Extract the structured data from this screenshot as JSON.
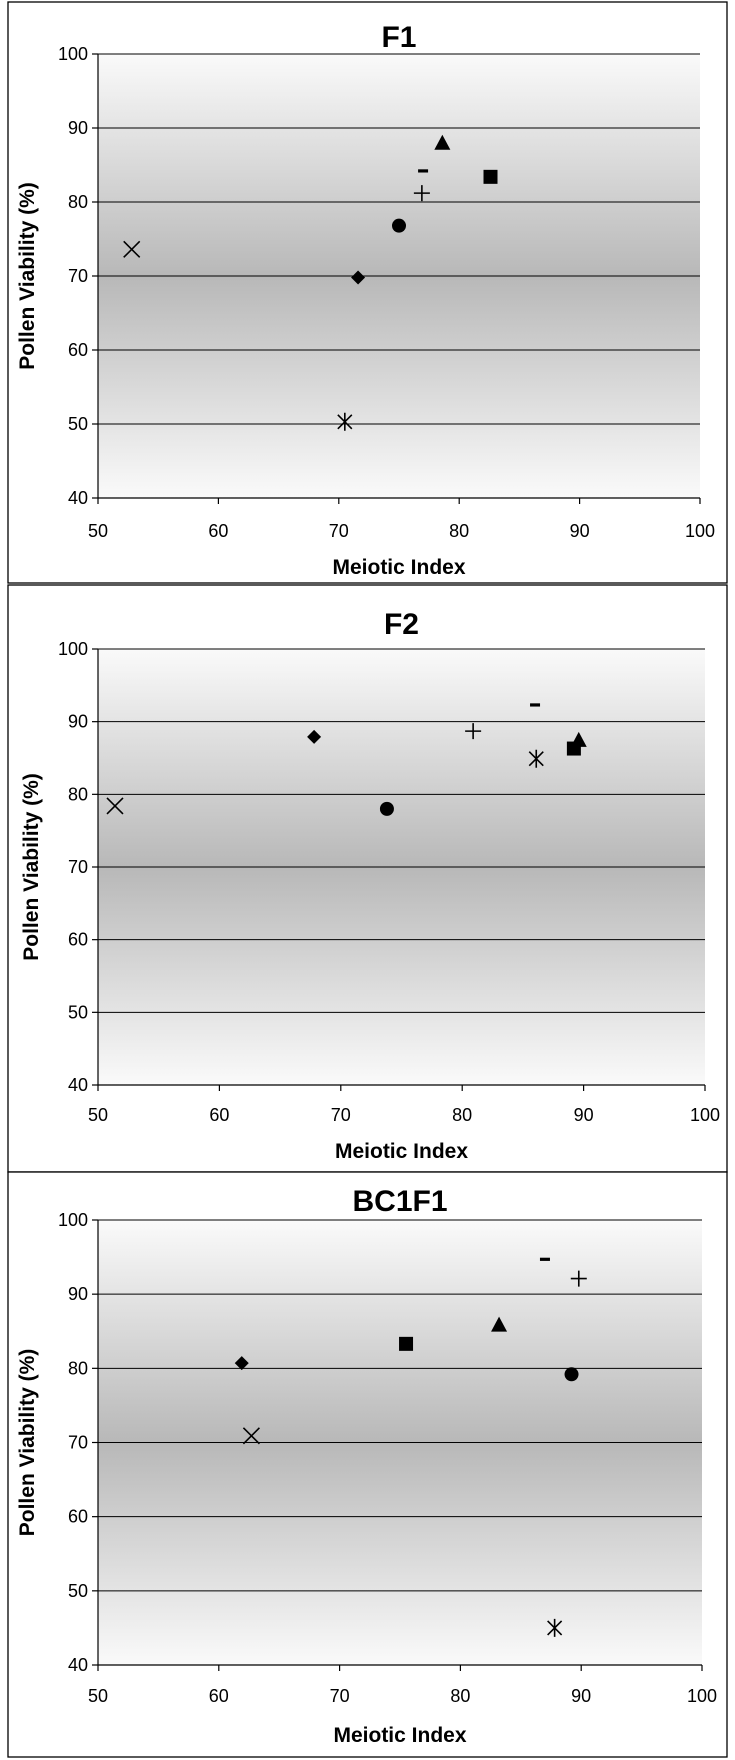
{
  "chart_data": [
    {
      "type": "scatter",
      "title": "F1",
      "xlabel": "Meiotic Index",
      "ylabel": "Pollen Viability (%)",
      "xlim": [
        50,
        100
      ],
      "ylim": [
        40,
        100
      ],
      "xticks": [
        "50",
        "60",
        "70",
        "80",
        "90",
        "100"
      ],
      "yticks": [
        "40",
        "50",
        "60",
        "70",
        "80",
        "90",
        "100"
      ],
      "grid": true,
      "legend": "none",
      "points": [
        {
          "marker": "diamond",
          "x": 71.6,
          "y": 69.8
        },
        {
          "marker": "square",
          "x": 82.6,
          "y": 83.4
        },
        {
          "marker": "triangle",
          "x": 78.6,
          "y": 88.0
        },
        {
          "marker": "x",
          "x": 52.8,
          "y": 73.6
        },
        {
          "marker": "asterisk",
          "x": 70.5,
          "y": 50.3
        },
        {
          "marker": "circle",
          "x": 75.0,
          "y": 76.8
        },
        {
          "marker": "plus",
          "x": 76.9,
          "y": 81.2
        },
        {
          "marker": "dash",
          "x": 77.0,
          "y": 84.2
        }
      ]
    },
    {
      "type": "scatter",
      "title": "F2",
      "xlabel": "Meiotic Index",
      "ylabel": "Pollen Viability (%)",
      "xlim": [
        50,
        100
      ],
      "ylim": [
        40,
        100
      ],
      "xticks": [
        "50",
        "60",
        "70",
        "80",
        "90",
        "100"
      ],
      "yticks": [
        "40",
        "50",
        "60",
        "70",
        "80",
        "90",
        "100"
      ],
      "grid": true,
      "legend": "none",
      "points": [
        {
          "marker": "diamond",
          "x": 67.8,
          "y": 87.9
        },
        {
          "marker": "square",
          "x": 89.2,
          "y": 86.3
        },
        {
          "marker": "triangle",
          "x": 89.6,
          "y": 87.5
        },
        {
          "marker": "x",
          "x": 51.4,
          "y": 78.4
        },
        {
          "marker": "asterisk",
          "x": 86.1,
          "y": 84.9
        },
        {
          "marker": "circle",
          "x": 73.8,
          "y": 78.0
        },
        {
          "marker": "plus",
          "x": 80.9,
          "y": 88.7
        },
        {
          "marker": "dash",
          "x": 86.0,
          "y": 92.3
        }
      ]
    },
    {
      "type": "scatter",
      "title": "BC1F1",
      "xlabel": "Meiotic Index",
      "ylabel": "Pollen Viability (%)",
      "xlim": [
        50,
        100
      ],
      "ylim": [
        40,
        100
      ],
      "xticks": [
        "50",
        "60",
        "70",
        "80",
        "90",
        "100"
      ],
      "yticks": [
        "40",
        "50",
        "60",
        "70",
        "80",
        "90",
        "100"
      ],
      "grid": true,
      "legend": "none",
      "points": [
        {
          "marker": "diamond",
          "x": 61.9,
          "y": 80.7
        },
        {
          "marker": "square",
          "x": 75.5,
          "y": 83.3
        },
        {
          "marker": "triangle",
          "x": 83.2,
          "y": 85.9
        },
        {
          "marker": "x",
          "x": 62.7,
          "y": 70.9
        },
        {
          "marker": "asterisk",
          "x": 87.8,
          "y": 45.0
        },
        {
          "marker": "circle",
          "x": 89.2,
          "y": 79.2
        },
        {
          "marker": "plus",
          "x": 89.8,
          "y": 92.1
        },
        {
          "marker": "dash",
          "x": 87.0,
          "y": 94.7
        }
      ]
    }
  ]
}
